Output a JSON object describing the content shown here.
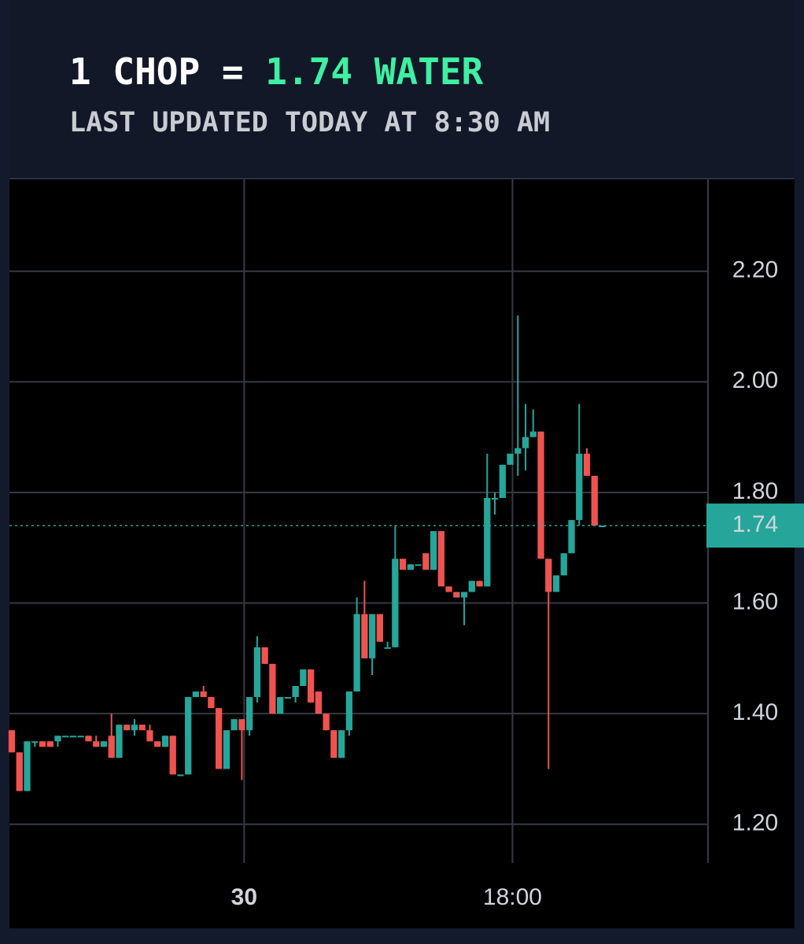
{
  "header": {
    "pair": "1 CHOP =",
    "rate": "1.74 WATER",
    "updated": "LAST UPDATED TODAY AT 8:30 AM"
  },
  "chart_data": {
    "type": "candlestick",
    "up_color": "#26a69a",
    "down_color": "#ef5350",
    "open": [
      1.37,
      1.33,
      1.26,
      1.35,
      1.35,
      1.35,
      1.35,
      1.36,
      1.36,
      1.36,
      1.36,
      1.35,
      1.34,
      1.36,
      1.32,
      1.38,
      1.37,
      1.38,
      1.37,
      1.35,
      1.34,
      1.36,
      1.29,
      1.29,
      1.43,
      1.44,
      1.43,
      1.41,
      1.3,
      1.37,
      1.39,
      1.37,
      1.43,
      1.52,
      1.49,
      1.4,
      1.43,
      1.43,
      1.45,
      1.48,
      1.44,
      1.4,
      1.37,
      1.32,
      1.37,
      1.44,
      1.58,
      1.5,
      1.58,
      1.52,
      1.52,
      1.68,
      1.66,
      1.67,
      1.69,
      1.66,
      1.73,
      1.63,
      1.62,
      1.61,
      1.62,
      1.64,
      1.63,
      1.79,
      1.79,
      1.85,
      1.87,
      1.88,
      1.9,
      1.91,
      1.68,
      1.62,
      1.65,
      1.69,
      1.75,
      1.87,
      1.83,
      1.74
    ],
    "high": [
      1.37,
      1.33,
      1.35,
      1.35,
      1.35,
      1.35,
      1.36,
      1.36,
      1.36,
      1.36,
      1.36,
      1.36,
      1.35,
      1.4,
      1.38,
      1.38,
      1.39,
      1.38,
      1.38,
      1.35,
      1.36,
      1.36,
      1.29,
      1.43,
      1.44,
      1.45,
      1.43,
      1.41,
      1.37,
      1.39,
      1.39,
      1.43,
      1.54,
      1.52,
      1.49,
      1.43,
      1.43,
      1.45,
      1.48,
      1.48,
      1.44,
      1.4,
      1.37,
      1.37,
      1.44,
      1.61,
      1.64,
      1.58,
      1.58,
      1.53,
      1.74,
      1.68,
      1.67,
      1.67,
      1.69,
      1.73,
      1.73,
      1.63,
      1.62,
      1.62,
      1.64,
      1.64,
      1.87,
      1.8,
      1.85,
      1.87,
      2.12,
      1.96,
      1.95,
      1.91,
      1.68,
      1.65,
      1.69,
      1.75,
      1.96,
      1.88,
      1.83,
      1.74
    ],
    "low": [
      1.33,
      1.26,
      1.26,
      1.34,
      1.34,
      1.34,
      1.34,
      1.36,
      1.36,
      1.36,
      1.35,
      1.34,
      1.34,
      1.32,
      1.32,
      1.37,
      1.36,
      1.37,
      1.35,
      1.34,
      1.34,
      1.29,
      1.29,
      1.29,
      1.43,
      1.43,
      1.41,
      1.3,
      1.3,
      1.37,
      1.28,
      1.36,
      1.42,
      1.49,
      1.4,
      1.4,
      1.43,
      1.42,
      1.45,
      1.42,
      1.4,
      1.37,
      1.32,
      1.32,
      1.36,
      1.44,
      1.5,
      1.47,
      1.53,
      1.52,
      1.52,
      1.66,
      1.66,
      1.67,
      1.66,
      1.66,
      1.63,
      1.62,
      1.61,
      1.56,
      1.62,
      1.63,
      1.63,
      1.76,
      1.79,
      1.85,
      1.83,
      1.84,
      1.9,
      1.68,
      1.3,
      1.62,
      1.65,
      1.69,
      1.74,
      1.83,
      1.74,
      1.74
    ],
    "close": [
      1.33,
      1.26,
      1.35,
      1.35,
      1.34,
      1.34,
      1.36,
      1.36,
      1.36,
      1.36,
      1.35,
      1.34,
      1.35,
      1.32,
      1.38,
      1.37,
      1.38,
      1.37,
      1.35,
      1.34,
      1.36,
      1.29,
      1.29,
      1.43,
      1.44,
      1.43,
      1.41,
      1.3,
      1.37,
      1.39,
      1.37,
      1.43,
      1.52,
      1.49,
      1.4,
      1.43,
      1.43,
      1.45,
      1.48,
      1.42,
      1.4,
      1.37,
      1.32,
      1.37,
      1.44,
      1.58,
      1.5,
      1.58,
      1.53,
      1.52,
      1.68,
      1.66,
      1.67,
      1.67,
      1.66,
      1.73,
      1.63,
      1.62,
      1.61,
      1.62,
      1.64,
      1.63,
      1.79,
      1.79,
      1.85,
      1.87,
      1.88,
      1.9,
      1.91,
      1.68,
      1.62,
      1.65,
      1.69,
      1.75,
      1.87,
      1.83,
      1.74,
      1.74
    ],
    "last_price": 1.74,
    "xlim": [
      -0.31,
      90.8
    ],
    "xticks": [
      {
        "value": 30.3,
        "label": "30"
      },
      {
        "value": 65.3,
        "label": "18:00"
      }
    ],
    "ylim": [
      1.13,
      2.366
    ],
    "yticks": [
      {
        "value": 1.2,
        "label": "1.20"
      },
      {
        "value": 1.4,
        "label": "1.40"
      },
      {
        "value": 1.6,
        "label": "1.60"
      },
      {
        "value": 1.8,
        "label": "1.80"
      },
      {
        "value": 2.0,
        "label": "2.00"
      },
      {
        "value": 2.2,
        "label": "2.20"
      }
    ],
    "grid": true
  }
}
